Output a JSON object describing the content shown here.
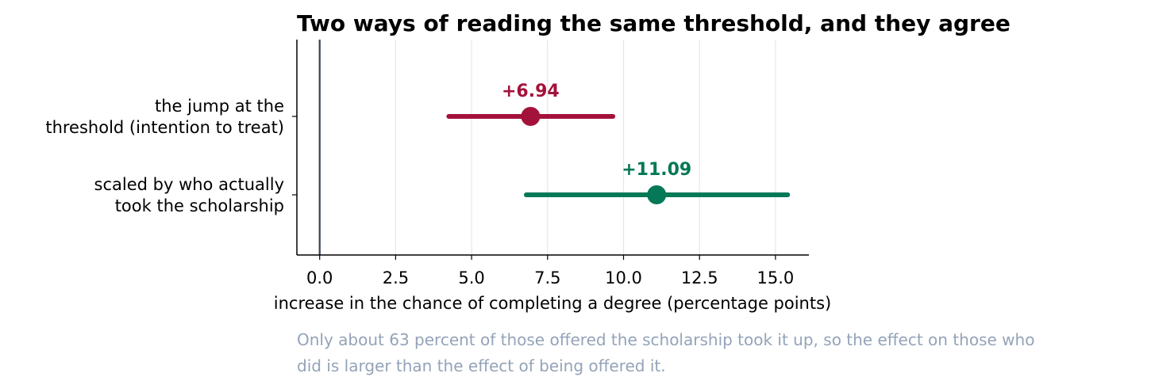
{
  "chart_data": {
    "type": "forest",
    "title": "Two ways of reading the same threshold, and they agree",
    "xlabel": "increase in the chance of completing a degree (percentage points)",
    "xlim": [
      -0.75,
      16.1
    ],
    "xticks": [
      0.0,
      2.5,
      5.0,
      7.5,
      10.0,
      12.5,
      15.0
    ],
    "xtick_labels": [
      "0.0",
      "2.5",
      "5.0",
      "7.5",
      "10.0",
      "12.5",
      "15.0"
    ],
    "reference_line": 0,
    "grid": "vertical",
    "series": [
      {
        "label_lines": [
          "the jump at the",
          "threshold (intention to treat)"
        ],
        "estimate": 6.94,
        "ci_low": 4.25,
        "ci_high": 9.65,
        "data_label": "+6.94",
        "color": "#a3123a"
      },
      {
        "label_lines": [
          "scaled by who actually",
          "took the scholarship"
        ],
        "estimate": 11.09,
        "ci_low": 6.8,
        "ci_high": 15.4,
        "data_label": "+11.09",
        "color": "#047857"
      }
    ],
    "caption_lines": [
      "Only about 63 percent of those offered the scholarship took it up, so the effect on those who",
      "did is larger than the effect of being offered it."
    ]
  }
}
